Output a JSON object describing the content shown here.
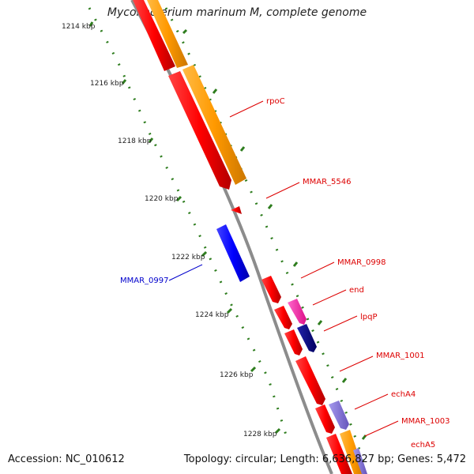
{
  "title": "Mycobacterium marinum M, complete genome",
  "footer": {
    "accession": "Accession: NC_010612",
    "summary": "Topology: circular; Length: 6,636,827 bp; Genes: 5,472"
  },
  "colors": {
    "backbone": "#8c8c8c",
    "tick": "#2e7d1e",
    "cds_forward": "#ff0000",
    "cds_reverse": "#0000ff",
    "orange_track": "#ff9900",
    "pink_track": "#ff33aa",
    "navy_track": "#000080",
    "lavender_track": "#8877dd",
    "label_forward": "#dd0000",
    "label_reverse": "#0000cc",
    "scale_text": "#222222"
  },
  "scale_labels": [
    "1214 kbp",
    "1216 kbp",
    "1218 kbp",
    "1220 kbp",
    "1222 kbp",
    "1224 kbp",
    "1226 kbp",
    "1228 kbp"
  ],
  "gene_labels": [
    "rpoC",
    "MMAR_5546",
    "MMAR_0998",
    "end",
    "lpqP",
    "MMAR_1001",
    "echA4",
    "MMAR_1003",
    "echA5",
    "MMAR_0997"
  ]
}
